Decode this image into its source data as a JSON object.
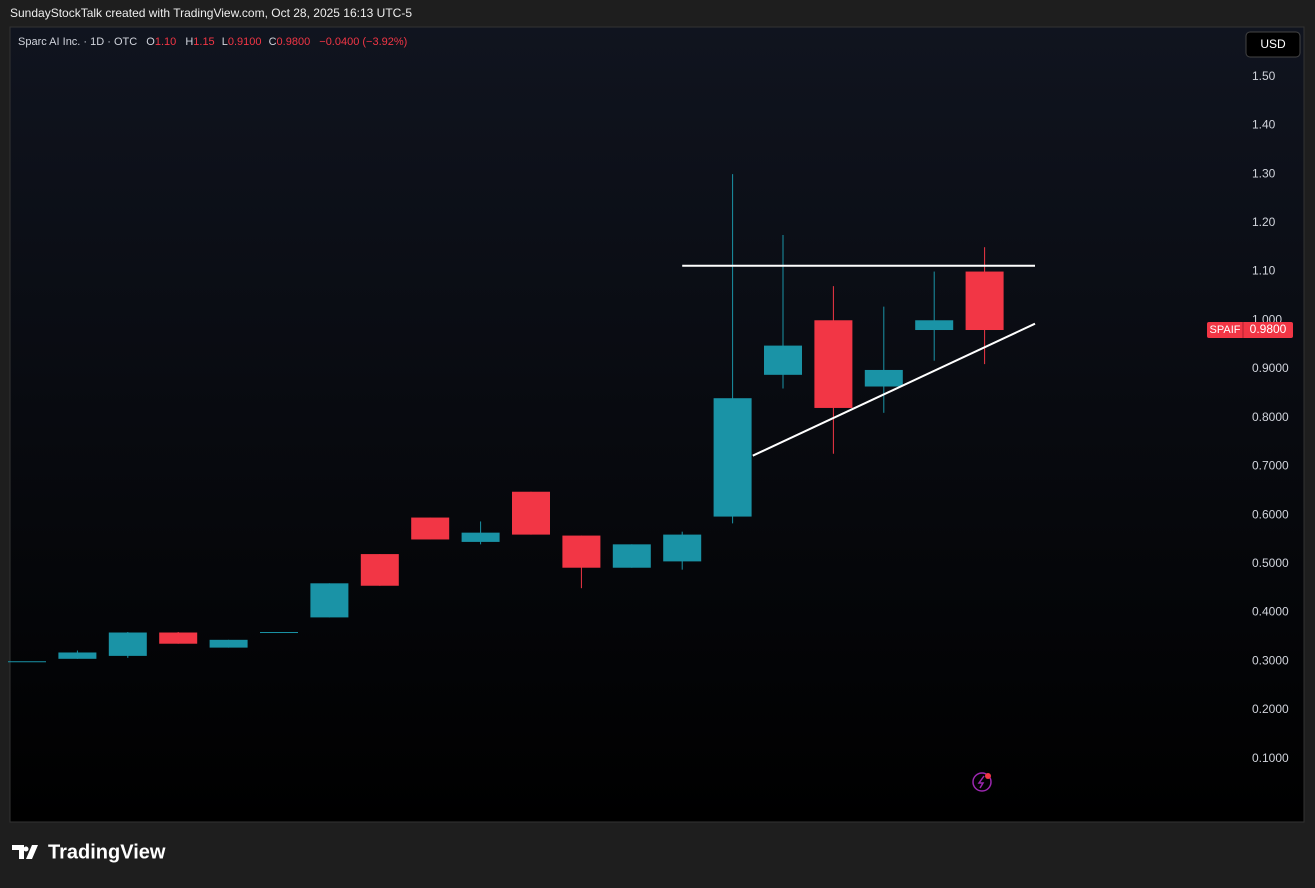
{
  "header": {
    "caption": "SundayStockTalk created with TradingView.com, Oct 28, 2025 16:13 UTC-5"
  },
  "legend": {
    "symbol": "Sparc AI Inc. · 1D · OTC",
    "o_key": "O",
    "o": "1.10",
    "h_key": "H",
    "h": "1.15",
    "l_key": "L",
    "l": "0.9100",
    "c_key": "C",
    "c": "0.9800",
    "change": "−0.0400 (−3.92%)"
  },
  "currency": "USD",
  "footer": {
    "brand": "TradingView"
  },
  "chart_data": {
    "type": "candlestick",
    "up_color": "#1a93a6",
    "down_color": "#f23645",
    "open": [
      0.3,
      0.305,
      0.311,
      0.359,
      0.328,
      0.36,
      0.39,
      0.52,
      0.595,
      0.545,
      0.648,
      0.558,
      0.492,
      0.505,
      0.597,
      0.888,
      1.0,
      0.864,
      0.98,
      1.1
    ],
    "high": [
      0.3,
      0.322,
      0.36,
      0.36,
      0.344,
      0.36,
      0.46,
      0.52,
      0.595,
      0.587,
      0.648,
      0.558,
      0.54,
      0.566,
      1.3,
      1.175,
      1.07,
      1.028,
      1.1,
      1.15
    ],
    "low": [
      0.3,
      0.305,
      0.307,
      0.336,
      0.328,
      0.36,
      0.39,
      0.455,
      0.55,
      0.54,
      0.56,
      0.45,
      0.492,
      0.488,
      0.583,
      0.86,
      0.726,
      0.81,
      0.917,
      0.91
    ],
    "close": [
      0.3,
      0.318,
      0.359,
      0.336,
      0.344,
      0.36,
      0.46,
      0.455,
      0.55,
      0.564,
      0.56,
      0.492,
      0.54,
      0.56,
      0.84,
      0.948,
      0.82,
      0.898,
      1.0,
      0.98
    ],
    "ylim": [
      -0.03,
      1.6
    ],
    "yticks": [
      {
        "value": 1.5,
        "label": "1.50"
      },
      {
        "value": 1.4,
        "label": "1.40"
      },
      {
        "value": 1.3,
        "label": "1.30"
      },
      {
        "value": 1.2,
        "label": "1.20"
      },
      {
        "value": 1.1,
        "label": "1.10"
      },
      {
        "value": 1.0,
        "label": "1.000"
      },
      {
        "value": 0.9,
        "label": "0.9000"
      },
      {
        "value": 0.8,
        "label": "0.8000"
      },
      {
        "value": 0.7,
        "label": "0.7000"
      },
      {
        "value": 0.6,
        "label": "0.6000"
      },
      {
        "value": 0.5,
        "label": "0.5000"
      },
      {
        "value": 0.4,
        "label": "0.4000"
      },
      {
        "value": 0.3,
        "label": "0.3000"
      },
      {
        "value": 0.2,
        "label": "0.2000"
      },
      {
        "value": 0.1,
        "label": "0.1000"
      }
    ],
    "grid": false,
    "last_price": {
      "symbol": "SPAIF",
      "value": 0.98,
      "label": "0.9800"
    },
    "drawings": [
      {
        "x": [
          13,
          20
        ],
        "y": [
          1.112,
          1.112
        ],
        "color": "#ffffff"
      },
      {
        "x": [
          14.4,
          20
        ],
        "y": [
          0.722,
          0.993
        ],
        "color": "#ffffff"
      }
    ]
  }
}
